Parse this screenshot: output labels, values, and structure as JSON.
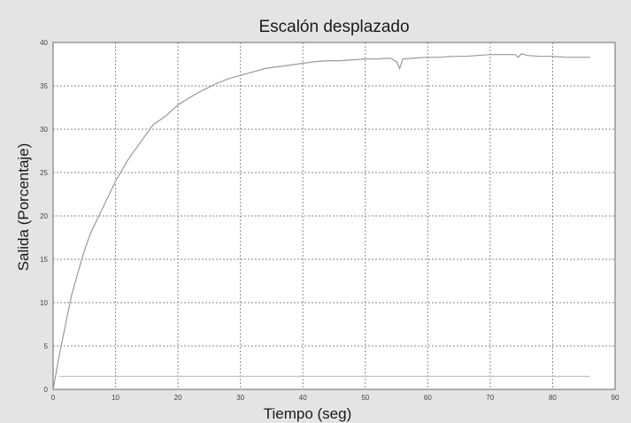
{
  "chart_data": {
    "type": "line",
    "title": "Escalón desplazado",
    "xlabel": "Tiempo (seg)",
    "ylabel": "Salida (Porcentaje)",
    "xlim": [
      0,
      90
    ],
    "ylim": [
      0,
      40
    ],
    "x_ticks": [
      "0",
      "10",
      "20",
      "30",
      "40",
      "50",
      "60",
      "70",
      "80",
      "90"
    ],
    "y_ticks": [
      "0",
      "5",
      "10",
      "15",
      "20",
      "25",
      "30",
      "35",
      "40"
    ],
    "grid": true,
    "series": [
      {
        "x": [
          0,
          1,
          2,
          3,
          4,
          5,
          6,
          7,
          8,
          9,
          10,
          12,
          14,
          16,
          18,
          20,
          22,
          24,
          26,
          28,
          30,
          32,
          34,
          36,
          38,
          40,
          42,
          44,
          46,
          48,
          50,
          52,
          54,
          55,
          55.5,
          56,
          58,
          60,
          62,
          64,
          66,
          68,
          70,
          72,
          74,
          74.5,
          75,
          76,
          78,
          80,
          82,
          84,
          86
        ],
        "y": [
          0,
          4,
          7.5,
          11,
          13.5,
          16,
          18,
          19.5,
          21,
          22.5,
          24,
          26.5,
          28.5,
          30.5,
          31.5,
          32.8,
          33.7,
          34.5,
          35.2,
          35.8,
          36.2,
          36.6,
          37,
          37.2,
          37.4,
          37.6,
          37.8,
          37.9,
          37.9,
          38,
          38.1,
          38.1,
          38.2,
          37.8,
          37.0,
          38.1,
          38.2,
          38.3,
          38.3,
          38.4,
          38.4,
          38.5,
          38.6,
          38.6,
          38.6,
          38.3,
          38.7,
          38.5,
          38.4,
          38.4,
          38.3,
          38.3,
          38.3
        ]
      },
      {
        "x": [
          1,
          86
        ],
        "y": [
          1.5,
          1.5
        ]
      }
    ]
  }
}
